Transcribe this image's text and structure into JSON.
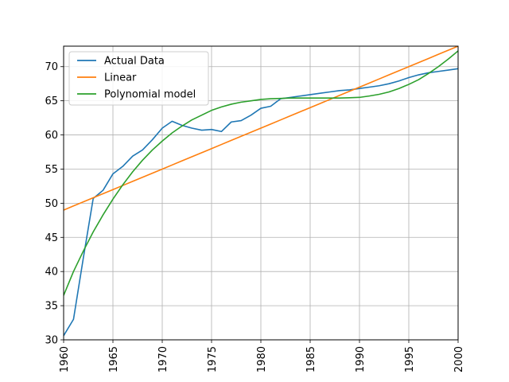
{
  "chart_data": {
    "type": "line",
    "title": "",
    "xlabel": "",
    "ylabel": "",
    "xlim": [
      1960,
      2000
    ],
    "ylim": [
      30,
      73
    ],
    "grid": true,
    "legend_position": "top-left",
    "x_ticks": [
      "1960",
      "1965",
      "1970",
      "1975",
      "1980",
      "1985",
      "1990",
      "1995",
      "2000"
    ],
    "y_ticks": [
      "30",
      "35",
      "40",
      "45",
      "50",
      "55",
      "60",
      "65",
      "70"
    ],
    "x": [
      1960,
      1961,
      1962,
      1963,
      1964,
      1965,
      1966,
      1967,
      1968,
      1969,
      1970,
      1971,
      1972,
      1973,
      1974,
      1975,
      1976,
      1977,
      1978,
      1979,
      1980,
      1981,
      1982,
      1983,
      1984,
      1985,
      1986,
      1987,
      1988,
      1989,
      1990,
      1991,
      1992,
      1993,
      1994,
      1995,
      1996,
      1997,
      1998,
      1999,
      2000
    ],
    "series": [
      {
        "name": "Actual Data",
        "color": "#1f77b4",
        "values": [
          30.6,
          33.0,
          42.0,
          50.7,
          51.9,
          54.3,
          55.4,
          56.9,
          57.8,
          59.3,
          61.0,
          62.0,
          61.4,
          61.0,
          60.7,
          60.8,
          60.5,
          61.9,
          62.1,
          62.9,
          63.9,
          64.2,
          65.3,
          65.5,
          65.7,
          65.9,
          66.1,
          66.3,
          66.5,
          66.6,
          66.8,
          67.0,
          67.2,
          67.5,
          67.9,
          68.4,
          68.8,
          69.1,
          69.3,
          69.5,
          69.7
        ]
      },
      {
        "name": "Linear",
        "color": "#ff7f0e",
        "values": [
          49.0,
          49.6,
          50.2,
          50.8,
          51.4,
          52.0,
          52.6,
          53.2,
          53.8,
          54.4,
          55.0,
          55.6,
          56.2,
          56.8,
          57.4,
          58.0,
          58.6,
          59.2,
          59.8,
          60.4,
          61.0,
          61.6,
          62.2,
          62.8,
          63.4,
          64.0,
          64.6,
          65.2,
          65.8,
          66.4,
          67.0,
          67.6,
          68.2,
          68.8,
          69.4,
          70.0,
          70.6,
          71.2,
          71.8,
          72.4,
          73.0
        ]
      },
      {
        "name": "Polynomial model",
        "color": "#2ca02c",
        "values": [
          36.5,
          40.0,
          43.0,
          45.8,
          48.3,
          50.6,
          52.7,
          54.6,
          56.3,
          57.8,
          59.1,
          60.3,
          61.3,
          62.2,
          62.9,
          63.6,
          64.1,
          64.5,
          64.8,
          65.0,
          65.2,
          65.3,
          65.35,
          65.4,
          65.4,
          65.4,
          65.4,
          65.4,
          65.4,
          65.45,
          65.5,
          65.7,
          65.95,
          66.3,
          66.8,
          67.4,
          68.1,
          69.0,
          70.0,
          71.1,
          72.3
        ]
      }
    ]
  }
}
